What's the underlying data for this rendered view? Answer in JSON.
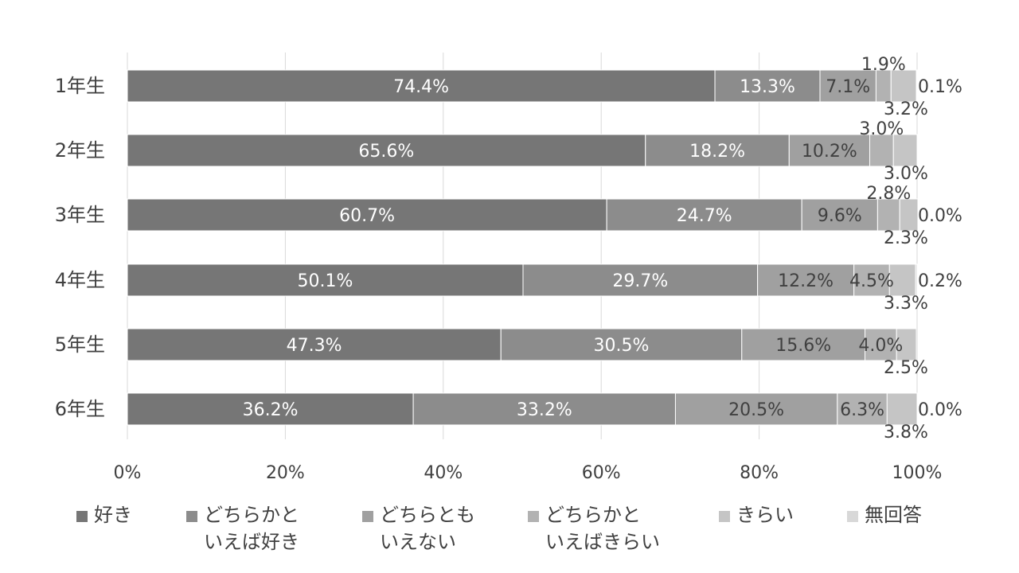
{
  "colors": {
    "series": [
      "#767676",
      "#8c8c8c",
      "#a0a0a0",
      "#b2b2b2",
      "#c5c5c5",
      "#d8d8d8"
    ],
    "grid": "#d9d9d9",
    "text": "#404040",
    "label_light": "#ffffff",
    "label_dark": "#404040"
  },
  "chart_data": {
    "type": "bar",
    "orientation": "horizontal",
    "stacked": true,
    "percent_stacked": true,
    "categories": [
      "1年生",
      "2年生",
      "3年生",
      "4年生",
      "5年生",
      "6年生"
    ],
    "series": [
      {
        "name": "好き",
        "legend_lines": [
          "好き"
        ],
        "values": [
          74.4,
          65.6,
          60.7,
          50.1,
          47.3,
          36.2
        ],
        "labels": [
          "74.4%",
          "65.6%",
          "60.7%",
          "50.1%",
          "47.3%",
          "36.2%"
        ]
      },
      {
        "name": "どちらかといえば好き",
        "legend_lines": [
          "どちらかと",
          "いえば好き"
        ],
        "values": [
          13.3,
          18.2,
          24.7,
          29.7,
          30.5,
          33.2
        ],
        "labels": [
          "13.3%",
          "18.2%",
          "24.7%",
          "29.7%",
          "30.5%",
          "33.2%"
        ]
      },
      {
        "name": "どちらともいえない",
        "legend_lines": [
          "どちらとも",
          "いえない"
        ],
        "values": [
          7.1,
          10.2,
          9.6,
          12.2,
          15.6,
          20.5
        ],
        "labels": [
          "7.1%",
          "10.2%",
          "9.6%",
          "12.2%",
          "15.6%",
          "20.5%"
        ]
      },
      {
        "name": "どちらかといえばきらい",
        "legend_lines": [
          "どちらかと",
          "いえばきらい"
        ],
        "values": [
          1.9,
          3.0,
          2.8,
          4.5,
          4.0,
          6.3
        ],
        "labels": [
          "1.9%",
          "3.0%",
          "2.8%",
          "4.5%",
          "4.0%",
          "6.3%"
        ]
      },
      {
        "name": "きらい",
        "legend_lines": [
          "きらい"
        ],
        "values": [
          3.2,
          3.0,
          2.3,
          3.3,
          2.5,
          3.8
        ],
        "labels": [
          "3.2%",
          "3.0%",
          "2.3%",
          "3.3%",
          "2.5%",
          "3.8%"
        ]
      },
      {
        "name": "無回答",
        "legend_lines": [
          "無回答"
        ],
        "values": [
          0.1,
          0.0,
          0.0,
          0.2,
          0.0,
          0.0
        ],
        "labels": [
          "0.1%",
          "",
          "0.0%",
          "0.2%",
          "",
          "0.0%"
        ]
      }
    ],
    "x_ticks": [
      "0%",
      "20%",
      "40%",
      "60%",
      "80%",
      "100%"
    ],
    "xlim": [
      0,
      100
    ],
    "grid": true,
    "legend_position": "bottom",
    "title": "",
    "xlabel": "",
    "ylabel": ""
  }
}
